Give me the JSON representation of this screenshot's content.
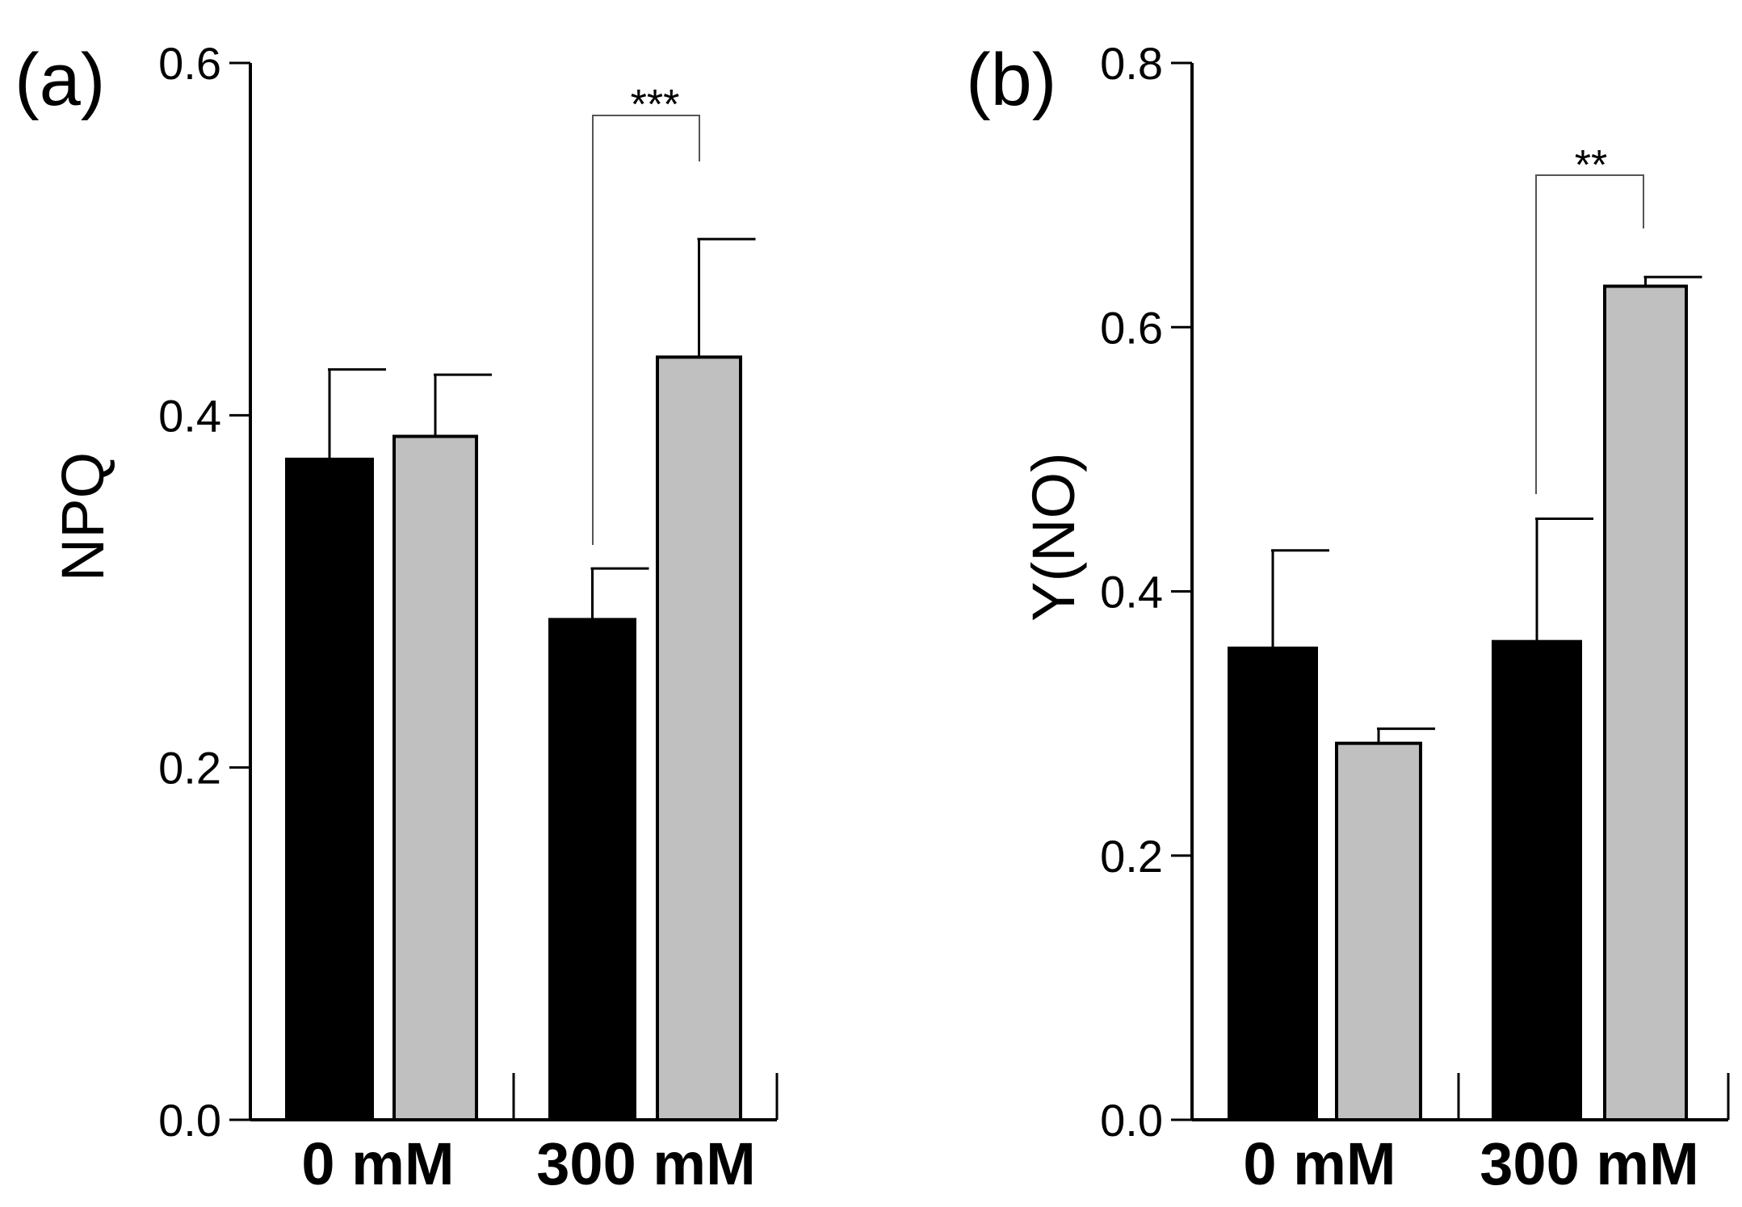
{
  "colors": {
    "control": "#000000",
    "treated": "#c0c0c0",
    "axis": "#000000"
  },
  "chart_data": [
    {
      "type": "bar",
      "panel_label": "(a)",
      "title": "",
      "xlabel": "",
      "ylabel": "NPQ",
      "ylim": [
        0.0,
        0.6
      ],
      "yticks": [
        0.0,
        0.2,
        0.4,
        0.6
      ],
      "ytick_labels": [
        "0.0",
        "0.2",
        "0.4",
        "0.6"
      ],
      "categories": [
        "0 mM",
        "300 mM"
      ],
      "series": [
        {
          "name": "black",
          "values": [
            0.375,
            0.284
          ],
          "errors": [
            0.051,
            0.029
          ]
        },
        {
          "name": "gray",
          "values": [
            0.388,
            0.433
          ],
          "errors": [
            0.035,
            0.067
          ]
        }
      ],
      "significance": [
        {
          "category_index": 1,
          "label": "***"
        }
      ]
    },
    {
      "type": "bar",
      "panel_label": "(b)",
      "title": "",
      "xlabel": "",
      "ylabel": "Y(NO)",
      "ylim": [
        0.0,
        0.8
      ],
      "yticks": [
        0.0,
        0.2,
        0.4,
        0.6,
        0.8
      ],
      "ytick_labels": [
        "0.0",
        "0.2",
        "0.4",
        "0.6",
        "0.8"
      ],
      "categories": [
        "0 mM",
        "300 mM"
      ],
      "series": [
        {
          "name": "black",
          "values": [
            0.357,
            0.362
          ],
          "errors": [
            0.074,
            0.093
          ]
        },
        {
          "name": "gray",
          "values": [
            0.285,
            0.631
          ],
          "errors": [
            0.011,
            0.007
          ]
        }
      ],
      "significance": [
        {
          "category_index": 1,
          "label": "**"
        }
      ]
    }
  ]
}
